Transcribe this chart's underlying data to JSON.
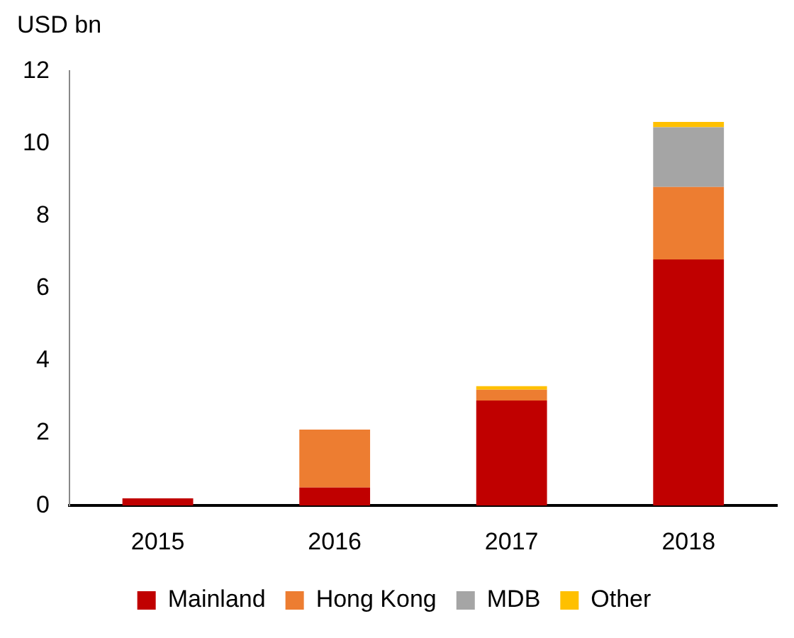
{
  "chart_data": {
    "type": "bar",
    "ylabel": "USD bn",
    "categories": [
      "2015",
      "2016",
      "2017",
      "2018"
    ],
    "stacked": true,
    "series": [
      {
        "name": "Mainland",
        "color": "#c00000",
        "values": [
          0.2,
          0.5,
          2.9,
          6.8
        ]
      },
      {
        "name": "Hong Kong",
        "color": "#ed7d31",
        "values": [
          0,
          1.6,
          0.3,
          2.0
        ]
      },
      {
        "name": "MDB",
        "color": "#a5a5a5",
        "values": [
          0,
          0,
          0,
          1.65
        ]
      },
      {
        "name": "Other",
        "color": "#ffc000",
        "values": [
          0,
          0,
          0.1,
          0.15
        ]
      }
    ],
    "ylim": [
      0,
      12
    ],
    "yticks": [
      0,
      2,
      4,
      6,
      8,
      10,
      12
    ],
    "grid": false,
    "legend": "bottom"
  }
}
